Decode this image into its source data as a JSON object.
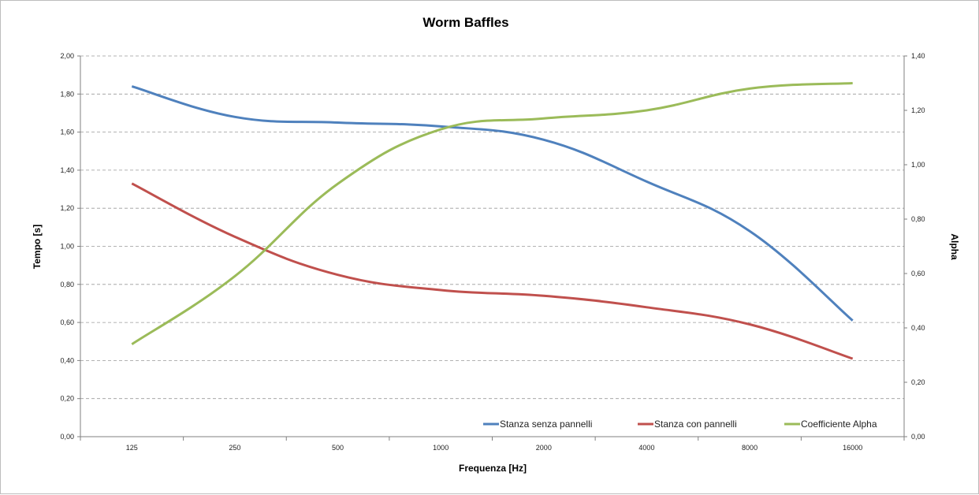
{
  "chart_data": {
    "type": "line",
    "title": "Worm Baffles",
    "xlabel": "Frequenza [Hz]",
    "ylabel": "Tempo [s]",
    "y2label": "Alpha",
    "categories": [
      "125",
      "250",
      "500",
      "1000",
      "2000",
      "4000",
      "8000",
      "16000"
    ],
    "ylim": [
      0,
      2
    ],
    "yticks": [
      "0,00",
      "0,20",
      "0,40",
      "0,60",
      "0,80",
      "1,00",
      "1,20",
      "1,40",
      "1,60",
      "1,80",
      "2,00"
    ],
    "y2lim": [
      0,
      1.4
    ],
    "y2ticks": [
      "0,00",
      "0,20",
      "0,40",
      "0,60",
      "0,80",
      "1,00",
      "1,20",
      "1,40"
    ],
    "grid": true,
    "legend_position": "bottom-right",
    "series": [
      {
        "name": "Stanza senza pannelli",
        "axis": "left",
        "color": "#4f81bd",
        "values": [
          1.84,
          1.68,
          1.65,
          1.63,
          1.56,
          1.34,
          1.08,
          0.61
        ]
      },
      {
        "name": "Stanza con pannelli",
        "axis": "left",
        "color": "#c0504d",
        "values": [
          1.33,
          1.05,
          0.85,
          0.77,
          0.74,
          0.68,
          0.59,
          0.41
        ]
      },
      {
        "name": "Coefficiente Alpha",
        "axis": "right",
        "color": "#9bbb59",
        "values": [
          0.34,
          0.59,
          0.93,
          1.13,
          1.17,
          1.2,
          1.28,
          1.3
        ]
      }
    ]
  }
}
